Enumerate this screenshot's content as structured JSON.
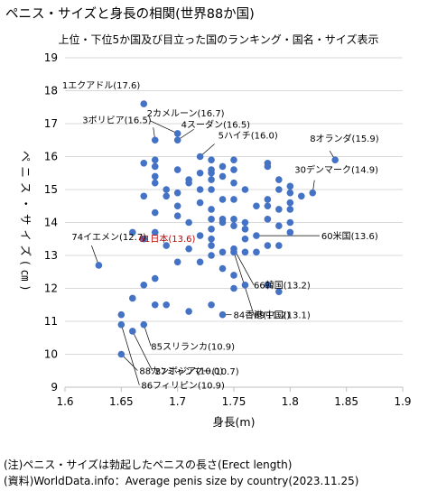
{
  "title": "ペニス・サイズと身長の相関(世界88か国)",
  "subtitle": "上位・下位5か国及び目立った国のランキング・国名・サイズ表示",
  "notes": [
    "(注)ペニス・サイズは勃起したペニスの長さ(Erect length)",
    "(資料)WorldData.info：Average penis size by country(2023.11.25)"
  ],
  "colors": {
    "point": "#4472C4",
    "highlight_label": "#C00000",
    "grid": "#D9D9D9",
    "axis": "#BFBFBF"
  },
  "chart_data": {
    "type": "scatter",
    "xlabel": "身長(m)",
    "ylabel": "ペニス・サイズ(㎝)",
    "xlim": [
      1.6,
      1.9
    ],
    "ylim": [
      9,
      19
    ],
    "xticks": [
      "1.6",
      "1.65",
      "1.7",
      "1.75",
      "1.8",
      "1.85",
      "1.9"
    ],
    "yticks": [
      "9",
      "10",
      "11",
      "12",
      "13",
      "14",
      "15",
      "16",
      "17",
      "18",
      "19"
    ],
    "grid": "horizontal",
    "labeled_points": [
      {
        "label": "1エクアドル(17.6)",
        "x": 1.67,
        "y": 17.6
      },
      {
        "label": "2カメルーン(16.7)",
        "x": 1.7,
        "y": 16.7
      },
      {
        "label": "3ボリビア(16.5)",
        "x": 1.68,
        "y": 16.5
      },
      {
        "label": "4スーダン(16.5)",
        "x": 1.7,
        "y": 16.5
      },
      {
        "label": "5ハイチ(16.0)",
        "x": 1.72,
        "y": 16.0
      },
      {
        "label": "8オランダ(15.9)",
        "x": 1.84,
        "y": 15.9
      },
      {
        "label": "30デンマーク(14.9)",
        "x": 1.82,
        "y": 14.9
      },
      {
        "label": "74イエメン(12.7)",
        "x": 1.63,
        "y": 12.7
      },
      {
        "label": "61日本(13.6)",
        "x": 1.72,
        "y": 13.6,
        "highlight": true
      },
      {
        "label": "60米国(13.6)",
        "x": 1.77,
        "y": 13.6
      },
      {
        "label": "66韓国(13.2)",
        "x": 1.75,
        "y": 13.2
      },
      {
        "label": "69中国(13.1)",
        "x": 1.75,
        "y": 13.1
      },
      {
        "label": "84香港(11.2)",
        "x": 1.74,
        "y": 11.2
      },
      {
        "label": "85スリランカ(10.9)",
        "x": 1.67,
        "y": 10.9
      },
      {
        "label": "87ミャンマー(10.7)",
        "x": 1.66,
        "y": 10.7
      },
      {
        "label": "86フィリピン(10.9)",
        "x": 1.65,
        "y": 10.9
      },
      {
        "label": "88カンボジア(10.0)",
        "x": 1.65,
        "y": 10.0
      }
    ],
    "points": [
      [
        1.67,
        15.8
      ],
      [
        1.68,
        15.9
      ],
      [
        1.68,
        15.7
      ],
      [
        1.68,
        15.4
      ],
      [
        1.68,
        15.2
      ],
      [
        1.69,
        15.0
      ],
      [
        1.7,
        15.6
      ],
      [
        1.7,
        14.9
      ],
      [
        1.7,
        14.5
      ],
      [
        1.7,
        14.2
      ],
      [
        1.71,
        15.3
      ],
      [
        1.71,
        15.2
      ],
      [
        1.67,
        14.8
      ],
      [
        1.68,
        14.3
      ],
      [
        1.68,
        13.7
      ],
      [
        1.66,
        13.7
      ],
      [
        1.69,
        13.3
      ],
      [
        1.7,
        12.8
      ],
      [
        1.73,
        15.9
      ],
      [
        1.73,
        15.6
      ],
      [
        1.73,
        15.5
      ],
      [
        1.73,
        15.3
      ],
      [
        1.74,
        15.4
      ],
      [
        1.73,
        15.0
      ],
      [
        1.72,
        15.0
      ],
      [
        1.74,
        14.7
      ],
      [
        1.73,
        14.4
      ],
      [
        1.74,
        14.1
      ],
      [
        1.73,
        14.1
      ],
      [
        1.72,
        14.6
      ],
      [
        1.73,
        13.8
      ],
      [
        1.73,
        13.5
      ],
      [
        1.73,
        13.3
      ],
      [
        1.74,
        13.1
      ],
      [
        1.73,
        13.0
      ],
      [
        1.71,
        13.2
      ],
      [
        1.75,
        15.9
      ],
      [
        1.75,
        15.6
      ],
      [
        1.75,
        15.2
      ],
      [
        1.76,
        15.0
      ],
      [
        1.75,
        14.7
      ],
      [
        1.75,
        14.1
      ],
      [
        1.76,
        14.0
      ],
      [
        1.76,
        13.8
      ],
      [
        1.74,
        14.0
      ],
      [
        1.75,
        13.9
      ],
      [
        1.76,
        13.5
      ],
      [
        1.76,
        13.1
      ],
      [
        1.78,
        15.8
      ],
      [
        1.78,
        15.7
      ],
      [
        1.79,
        15.3
      ],
      [
        1.79,
        15.0
      ],
      [
        1.78,
        14.7
      ],
      [
        1.78,
        14.5
      ],
      [
        1.79,
        14.4
      ],
      [
        1.78,
        14.1
      ],
      [
        1.8,
        15.1
      ],
      [
        1.8,
        14.9
      ],
      [
        1.8,
        14.6
      ],
      [
        1.8,
        14.4
      ],
      [
        1.8,
        14.0
      ],
      [
        1.79,
        13.9
      ],
      [
        1.8,
        13.7
      ],
      [
        1.81,
        14.8
      ],
      [
        1.78,
        13.3
      ],
      [
        1.79,
        13.3
      ],
      [
        1.77,
        13.1
      ],
      [
        1.76,
        12.1
      ],
      [
        1.79,
        11.9
      ],
      [
        1.75,
        12.0
      ],
      [
        1.73,
        11.5
      ],
      [
        1.71,
        11.3
      ],
      [
        1.69,
        11.5
      ],
      [
        1.68,
        11.5
      ],
      [
        1.66,
        11.7
      ],
      [
        1.67,
        12.1
      ],
      [
        1.68,
        12.3
      ],
      [
        1.72,
        12.8
      ],
      [
        1.75,
        12.4
      ],
      [
        1.78,
        12.1
      ],
      [
        1.65,
        11.2
      ],
      [
        1.69,
        14.8
      ],
      [
        1.77,
        14.5
      ],
      [
        1.74,
        15.7
      ],
      [
        1.72,
        15.5
      ],
      [
        1.67,
        13.5
      ],
      [
        1.71,
        14.0
      ],
      [
        1.74,
        12.6
      ]
    ]
  }
}
